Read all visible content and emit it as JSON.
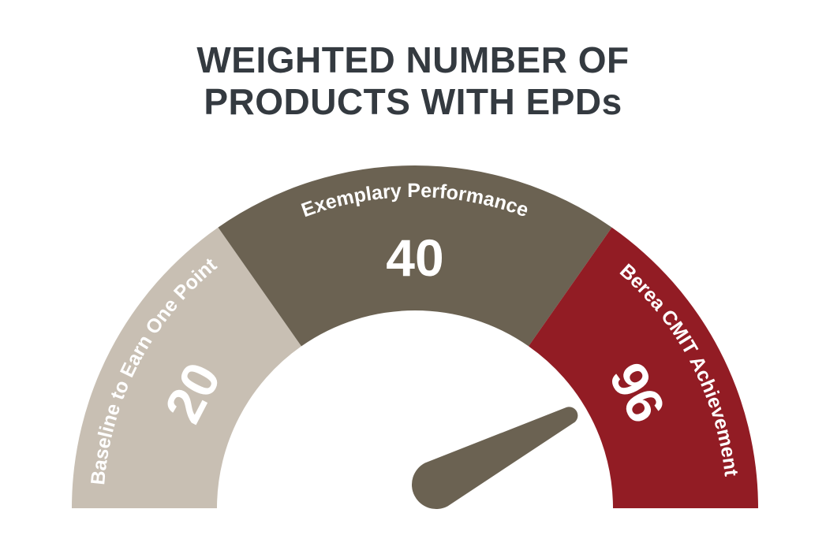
{
  "chart_data": {
    "type": "gauge",
    "title_lines": [
      "WEIGHTED NUMBER OF",
      "PRODUCTS WITH EPDs"
    ],
    "segments": [
      {
        "label": "Baseline to Earn One Point",
        "value": "20",
        "color": "#c8bfb3"
      },
      {
        "label": "Exemplary Performance",
        "value": "40",
        "color": "#6b6252"
      },
      {
        "label": "Berea CMIT Achievement",
        "value": "96",
        "color": "#921c24"
      }
    ],
    "needle_color": "#6b6252",
    "indicated_segment": "Berea CMIT Achievement"
  }
}
